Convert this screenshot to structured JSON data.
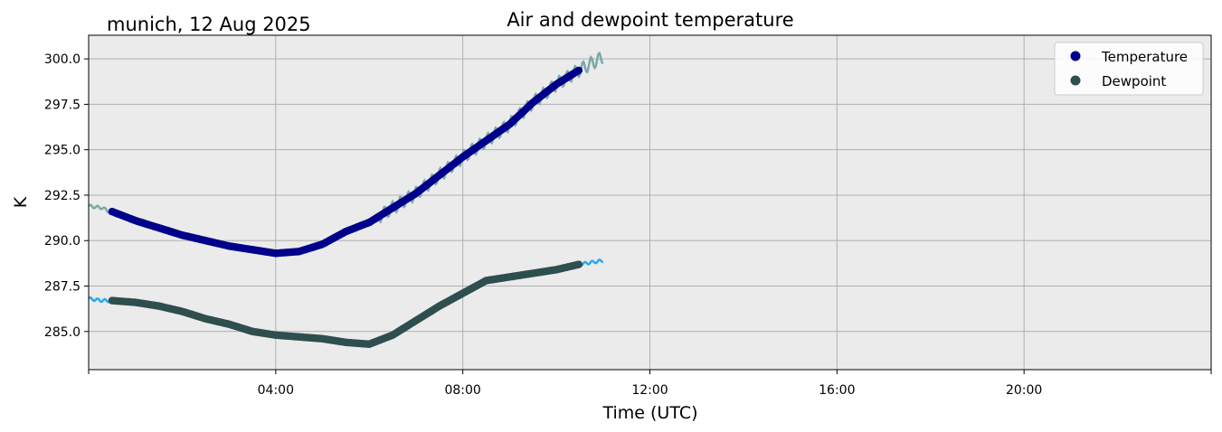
{
  "chart_data": {
    "type": "line",
    "title": "Air and dewpoint temperature",
    "subtitle": "munich, 12 Aug 2025",
    "xlabel": "Time (UTC)",
    "ylabel": "K",
    "x_unit": "hours UTC",
    "xlim": [
      0,
      24
    ],
    "ylim": [
      282.9,
      301.3
    ],
    "x_ticks": [
      0,
      4,
      8,
      12,
      16,
      20,
      24
    ],
    "x_tick_labels": [
      "",
      "04:00",
      "08:00",
      "12:00",
      "16:00",
      "20:00",
      ""
    ],
    "y_ticks": [
      285.0,
      287.5,
      290.0,
      292.5,
      295.0,
      297.5,
      300.0
    ],
    "y_tick_labels": [
      "285.0",
      "287.5",
      "290.0",
      "292.5",
      "295.0",
      "297.5",
      "300.0"
    ],
    "grid": true,
    "legend_position": "top-right",
    "background_color": "#ebebeb",
    "series": [
      {
        "name": "Temperature",
        "style": "markers",
        "color": "#00008b",
        "raw_color": "#7aa9a9",
        "x": [
          0.0,
          0.3,
          0.5,
          1.0,
          1.5,
          2.0,
          2.5,
          3.0,
          3.5,
          4.0,
          4.5,
          5.0,
          5.5,
          6.0,
          6.5,
          7.0,
          7.5,
          8.0,
          8.5,
          9.0,
          9.5,
          10.0,
          10.5,
          11.0
        ],
        "raw_values": [
          291.9,
          291.8,
          291.5,
          291.1,
          290.7,
          290.3,
          290.0,
          289.7,
          289.5,
          289.3,
          289.4,
          289.8,
          290.5,
          291.0,
          291.8,
          292.6,
          293.6,
          294.6,
          295.5,
          296.4,
          297.6,
          298.6,
          299.4,
          300.1
        ],
        "values": [
          null,
          null,
          291.6,
          291.1,
          290.7,
          290.3,
          290.0,
          289.7,
          289.5,
          289.3,
          289.4,
          289.8,
          290.5,
          291.0,
          291.8,
          292.6,
          293.6,
          294.6,
          295.5,
          296.4,
          297.6,
          298.6,
          299.4,
          null
        ]
      },
      {
        "name": "Dewpoint",
        "style": "markers",
        "color": "#2f4f4f",
        "raw_color": "#29a8ee",
        "x": [
          0.0,
          0.3,
          0.5,
          1.0,
          1.5,
          2.0,
          2.5,
          3.0,
          3.5,
          4.0,
          4.5,
          5.0,
          5.5,
          6.0,
          6.5,
          7.0,
          7.5,
          8.0,
          8.5,
          9.0,
          9.5,
          10.0,
          10.5,
          11.0
        ],
        "raw_values": [
          286.8,
          286.7,
          286.7,
          286.6,
          286.4,
          286.1,
          285.7,
          285.4,
          285.0,
          284.8,
          284.7,
          284.6,
          284.4,
          284.3,
          284.8,
          285.6,
          286.4,
          287.1,
          287.8,
          288.0,
          288.2,
          288.4,
          288.7,
          288.9
        ],
        "values": [
          null,
          null,
          286.7,
          286.6,
          286.4,
          286.1,
          285.7,
          285.4,
          285.0,
          284.8,
          284.7,
          284.6,
          284.4,
          284.3,
          284.8,
          285.6,
          286.4,
          287.1,
          287.8,
          288.0,
          288.2,
          288.4,
          288.7,
          null
        ]
      }
    ]
  }
}
